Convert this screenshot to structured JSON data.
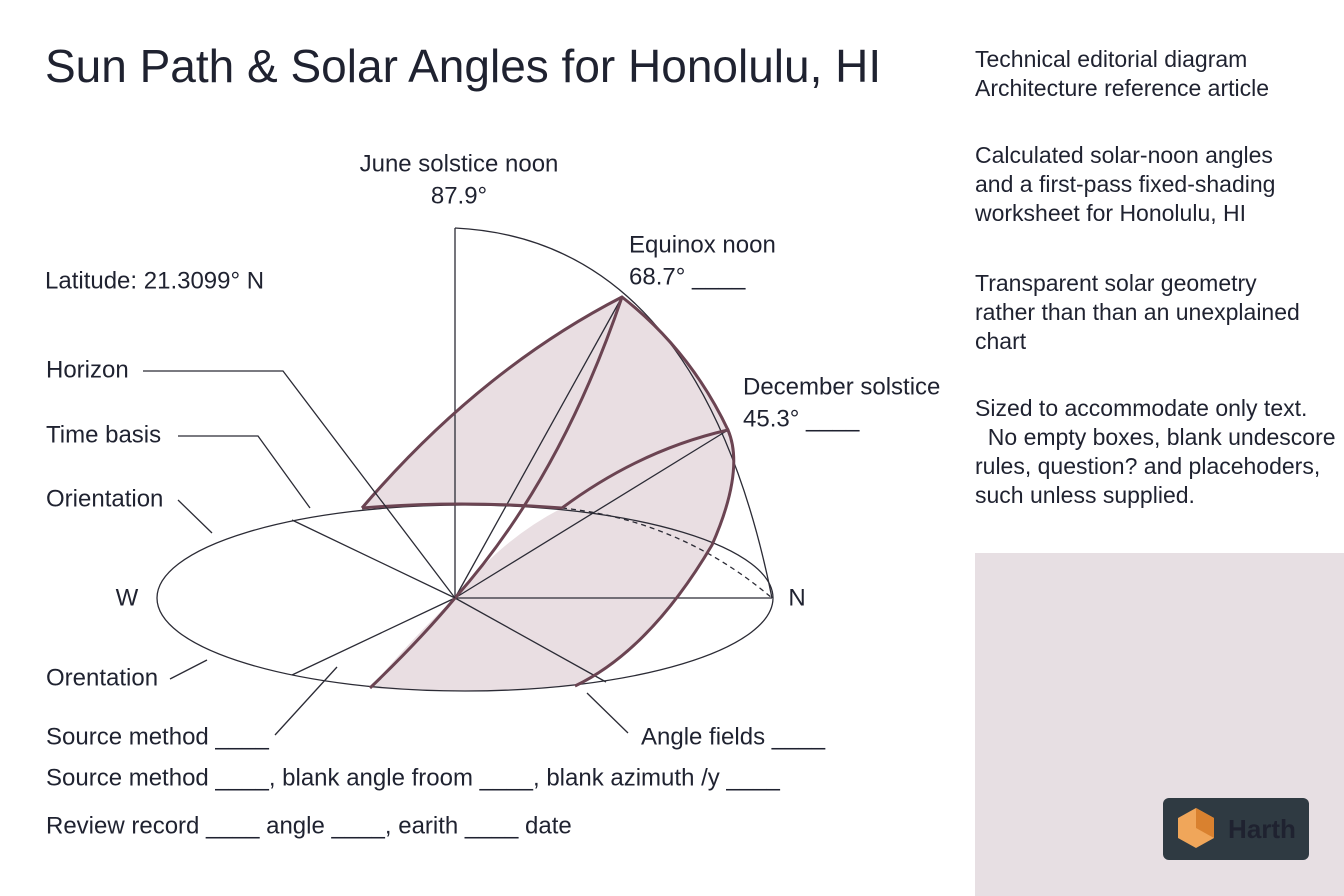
{
  "title": "Sun Path & Solar Angles for Honolulu, HI",
  "diagram": {
    "latitude": "Latitude: 21.3099° N",
    "june": {
      "label": "June solstice noon",
      "angle": "87.9°"
    },
    "equinox": {
      "label": "Equinox noon",
      "angle": "68.7° ____"
    },
    "december": {
      "label": "December solstice",
      "angle": "45.3° ____"
    },
    "compass": [
      "W",
      "N"
    ],
    "leaders": [
      "Horizon",
      "Time basis",
      "Orientation",
      "Orentation",
      "Source method ____",
      "Angle fields ____"
    ]
  },
  "notes": [
    "Source method ____, blank angle froom ____, blank azimuth /y ____",
    "Review record ____ angle ____, earith ____ date"
  ],
  "sidebar": [
    [
      "Technical editorial diagram",
      "Architecture reference article"
    ],
    [
      "Calculated solar-noon angles",
      "and a first-pass fixed-shading",
      "worksheet for Honolulu, HI"
    ],
    [
      "Transparent solar geometry",
      "rather than than an unexplained",
      "chart"
    ],
    [
      "Sized to accommodate only text.",
      "  No empty boxes, blank undescore",
      "rules, question? and placehoders,",
      "such unless supplied."
    ]
  ],
  "logo": "Harth"
}
